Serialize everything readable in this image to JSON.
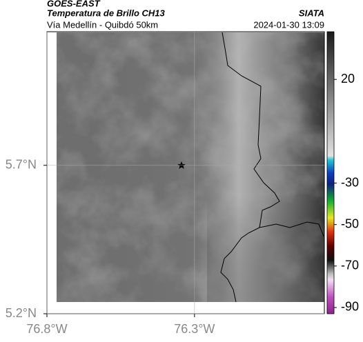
{
  "header": {
    "source": "GOES-EAST",
    "title": "Temperatura de Brillo CH13",
    "subtitle": "Vía Medellín - Quibdó 50km",
    "brand": "SIATA",
    "datetime": "2024-01-30 13:09"
  },
  "map": {
    "xlim": [
      -76.8,
      -75.86
    ],
    "ylim": [
      5.2,
      6.15
    ],
    "xticks": [
      {
        "value": -76.8,
        "label": "76.8°W"
      },
      {
        "value": -76.3,
        "label": "76.3°W"
      }
    ],
    "yticks": [
      {
        "value": 5.7,
        "label": "5.7°N"
      },
      {
        "value": 5.2,
        "label": "5.2°N"
      }
    ],
    "grid": true
  },
  "colorbar": {
    "clim": [
      -93,
      43
    ],
    "ticks": [
      20,
      -30,
      -50,
      -70,
      -90
    ]
  }
}
